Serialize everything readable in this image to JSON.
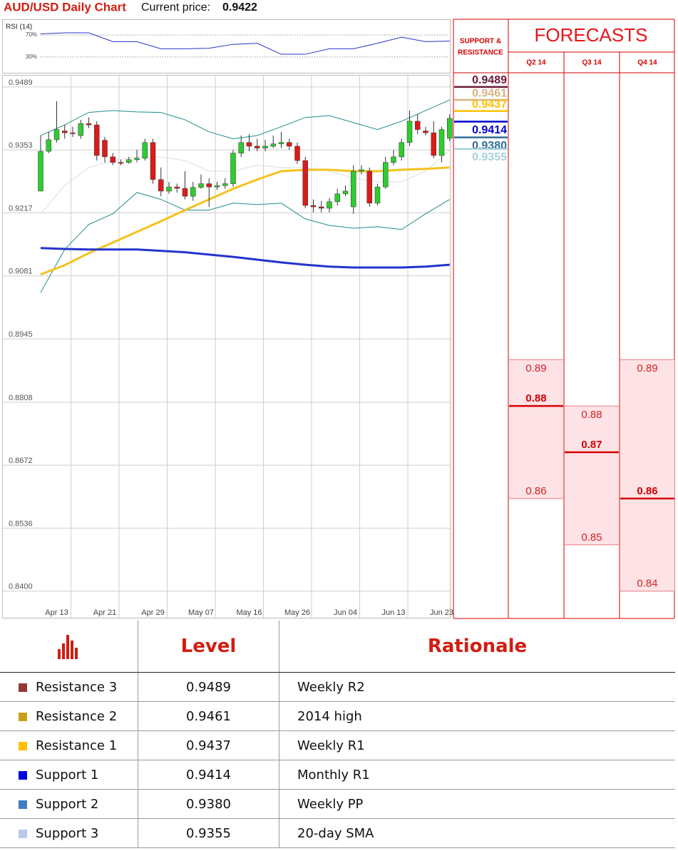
{
  "header": {
    "title": "AUD/USD Daily Chart",
    "price_label": "Current price:",
    "price": 0.9422
  },
  "chart_data": [
    {
      "type": "line",
      "title": "RSI (14)",
      "color": "#2a35c8",
      "x": [
        0,
        3,
        6,
        9,
        12,
        15,
        18,
        21,
        24,
        27,
        30,
        33,
        36,
        39,
        42,
        45,
        48,
        51
      ],
      "values": [
        72,
        74,
        74,
        58,
        58,
        45,
        45,
        46,
        53,
        55,
        35,
        35,
        45,
        45,
        55,
        66,
        58,
        59
      ],
      "ylim": [
        0,
        100
      ],
      "yticks": [
        {
          "value": 30,
          "label": "30%"
        },
        {
          "value": 70,
          "label": "70%"
        }
      ]
    },
    {
      "type": "candlestick",
      "categories": [
        null,
        null,
        "Apr 13",
        null,
        null,
        null,
        null,
        null,
        "Apr 21",
        null,
        null,
        null,
        null,
        null,
        "Apr 29",
        null,
        null,
        null,
        null,
        null,
        "May 07",
        null,
        null,
        null,
        null,
        null,
        "May 16",
        null,
        null,
        null,
        null,
        null,
        "May 26",
        null,
        null,
        null,
        null,
        null,
        "Jun 04",
        null,
        null,
        null,
        null,
        null,
        "Jun 13",
        null,
        null,
        null,
        null,
        null,
        "Jun 23",
        null
      ],
      "open": [
        0.9264,
        0.935,
        0.9375,
        0.9394,
        0.939,
        0.9384,
        0.941,
        0.9407,
        0.9374,
        0.9338,
        0.9326,
        0.9326,
        0.9332,
        0.9335,
        0.9369,
        0.9289,
        0.9264,
        0.9273,
        0.927,
        0.9253,
        0.9272,
        0.928,
        0.9273,
        0.9276,
        0.928,
        0.9346,
        0.9369,
        0.9361,
        0.9357,
        0.9361,
        0.9366,
        0.9369,
        0.9361,
        0.933,
        0.9233,
        0.923,
        0.9227,
        0.9241,
        0.9258,
        0.923,
        0.9307,
        0.9307,
        0.9238,
        0.9273,
        0.9326,
        0.9338,
        0.9369,
        0.9415,
        0.9394,
        0.939,
        0.9341,
        0.9378
      ],
      "high": [
        0.9384,
        0.9392,
        0.9458,
        0.9407,
        0.9403,
        0.9418,
        0.9423,
        0.9415,
        0.9381,
        0.9346,
        0.9332,
        0.9338,
        0.9353,
        0.9377,
        0.9377,
        0.9315,
        0.9284,
        0.928,
        0.9307,
        0.9284,
        0.93,
        0.9292,
        0.9284,
        0.9292,
        0.9353,
        0.9384,
        0.9387,
        0.9377,
        0.9375,
        0.9384,
        0.9392,
        0.9377,
        0.9369,
        0.9338,
        0.9246,
        0.9243,
        0.9249,
        0.9269,
        0.9276,
        0.932,
        0.932,
        0.9315,
        0.928,
        0.9338,
        0.9353,
        0.9377,
        0.9438,
        0.943,
        0.9403,
        0.9415,
        0.9403,
        0.943
      ],
      "low": [
        0.9264,
        0.9346,
        0.9369,
        0.9377,
        0.9381,
        0.9377,
        0.94,
        0.933,
        0.9326,
        0.932,
        0.932,
        0.9323,
        0.9326,
        0.933,
        0.928,
        0.9253,
        0.9258,
        0.9261,
        0.9246,
        0.9243,
        0.9269,
        0.923,
        0.9267,
        0.9269,
        0.9273,
        0.9338,
        0.935,
        0.935,
        0.935,
        0.9357,
        0.9357,
        0.9353,
        0.9323,
        0.9227,
        0.9218,
        0.9218,
        0.9218,
        0.9233,
        0.9253,
        0.9215,
        0.93,
        0.923,
        0.9233,
        0.9269,
        0.932,
        0.933,
        0.9361,
        0.9387,
        0.9384,
        0.9335,
        0.9326,
        0.9372
      ],
      "close": [
        0.935,
        0.9375,
        0.9397,
        0.939,
        0.9388,
        0.941,
        0.9407,
        0.9341,
        0.9338,
        0.9326,
        0.9324,
        0.9332,
        0.9335,
        0.9369,
        0.9289,
        0.9264,
        0.9273,
        0.927,
        0.9253,
        0.9272,
        0.928,
        0.9273,
        0.9276,
        0.928,
        0.9346,
        0.9369,
        0.9361,
        0.9357,
        0.9361,
        0.9366,
        0.9369,
        0.9361,
        0.933,
        0.9233,
        0.923,
        0.9227,
        0.9241,
        0.9258,
        0.9264,
        0.9307,
        0.931,
        0.9238,
        0.9273,
        0.9326,
        0.9338,
        0.9369,
        0.9415,
        0.9397,
        0.939,
        0.9341,
        0.9397,
        0.9421
      ],
      "up_color": "#2ecc2e",
      "down_color": "#dd1a1a",
      "ylim": [
        0.8341,
        0.9515
      ],
      "yticks": [
        0.9489,
        0.9353,
        0.9217,
        0.9081,
        0.8945,
        0.8808,
        0.8672,
        0.8536,
        {
          "value": 0.84,
          "label": "0.8400"
        }
      ],
      "grid": true,
      "line_x": [
        0,
        3,
        6,
        9,
        12,
        15,
        18,
        21,
        24,
        27,
        30,
        33,
        36,
        39,
        42,
        45,
        48,
        51
      ],
      "lines": [
        {
          "color": "#1f8e8a",
          "values": [
            0.9384,
            0.9407,
            0.9434,
            0.9438,
            0.9435,
            0.9434,
            0.9418,
            0.9392,
            0.9377,
            0.9384,
            0.9403,
            0.9423,
            0.9427,
            0.9412,
            0.9397,
            0.9415,
            0.9438,
            0.9461
          ]
        },
        {
          "color": "#1f8e8a",
          "values": [
            0.9045,
            0.9138,
            0.9192,
            0.9215,
            0.9261,
            0.9246,
            0.9223,
            0.9223,
            0.9238,
            0.9235,
            0.9238,
            0.9204,
            0.919,
            0.9184,
            0.9187,
            0.9181,
            0.9215,
            0.9246
          ]
        },
        {
          "color": "#dcdcdc",
          "values": [
            0.9215,
            0.9276,
            0.9315,
            0.933,
            0.9338,
            0.9338,
            0.933,
            0.9307,
            0.9307,
            0.932,
            0.9315,
            0.9315,
            0.9307,
            0.9292,
            0.9284,
            0.9284,
            0.9307,
            0.9353
          ]
        },
        {
          "color": "#f6c21c",
          "values": [
            0.9084,
            0.9104,
            0.913,
            0.9153,
            0.9176,
            0.9199,
            0.9223,
            0.9246,
            0.9269,
            0.9289,
            0.9307,
            0.931,
            0.931,
            0.9307,
            0.9307,
            0.931,
            0.9312,
            0.9315
          ]
        },
        {
          "color": "#2433cc",
          "values": [
            0.9141,
            0.9139,
            0.9138,
            0.9138,
            0.9138,
            0.9135,
            0.9132,
            0.9127,
            0.9122,
            0.9116,
            0.911,
            0.9105,
            0.9101,
            0.9099,
            0.9099,
            0.9099,
            0.9101,
            0.9105
          ]
        }
      ],
      "sr_title": [
        "SUPPORT &",
        "RESISTANCE"
      ],
      "levels": [
        {
          "value": 0.9489,
          "color": "#6b1838"
        },
        {
          "value": 0.9461,
          "color": "#d8b584"
        },
        {
          "value": 0.9437,
          "color": "#ffc000"
        },
        {
          "value": 0.9414,
          "color": "#0000d0"
        },
        {
          "value": 0.938,
          "label": "0.9380",
          "color": "#2f6e96"
        },
        {
          "value": 0.9355,
          "color": "#a9d2dc"
        }
      ],
      "forecasts": {
        "title": "FORECASTS",
        "columns": [
          {
            "label": "Q2 14",
            "high": 0.89,
            "mid": 0.88,
            "low": 0.86
          },
          {
            "label": "Q3 14",
            "high": 0.88,
            "mid": 0.87,
            "low": 0.85
          },
          {
            "label": "Q4 14",
            "high": 0.89,
            "mid": 0.86,
            "low": 0.84
          }
        ]
      }
    }
  ],
  "table": {
    "columns": [
      "Level",
      "Rationale"
    ],
    "rows": [
      {
        "color": "#953735",
        "name": "Resistance 3",
        "level": "0.9489",
        "rationale": "Weekly R2"
      },
      {
        "color": "#c9a01a",
        "name": "Resistance 2",
        "level": "0.9461",
        "rationale": "2014 high"
      },
      {
        "color": "#ffc000",
        "name": "Resistance 1",
        "level": "0.9437",
        "rationale": "Weekly R1"
      },
      {
        "color": "#0000e0",
        "name": "Support 1",
        "level": "0.9414",
        "rationale": "Monthly R1"
      },
      {
        "color": "#3f7cc0",
        "name": "Support 2",
        "level": "0.9380",
        "rationale": "Weekly PP"
      },
      {
        "color": "#b7cbe8",
        "name": "Support 3",
        "level": "0.9355",
        "rationale": "20-day SMA"
      }
    ]
  }
}
